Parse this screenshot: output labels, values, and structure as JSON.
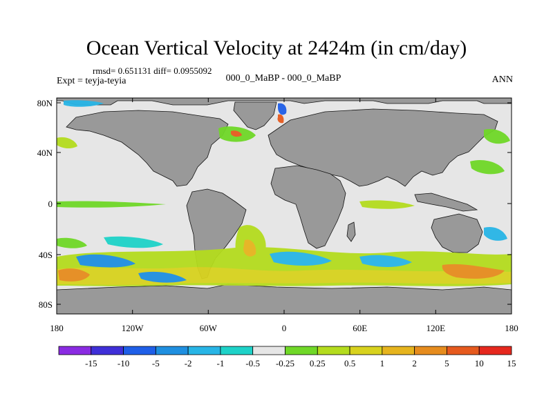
{
  "title": "Ocean Vertical Velocity at 2424m (in cm/day)",
  "stats": "rmsd= 0.651131 diff= 0.0955092",
  "experiment": "Expt = teyja-teyia",
  "comparison": "000_0_MaBP - 000_0_MaBP",
  "season": "ANN",
  "lat_ticks": [
    "80N",
    "40N",
    "0",
    "40S",
    "80S"
  ],
  "lon_ticks": [
    "180",
    "120W",
    "60W",
    "0",
    "60E",
    "120E",
    "180"
  ],
  "colorbar": {
    "labels": [
      "-15",
      "-10",
      "-5",
      "-2",
      "-1",
      "-0.5",
      "-0.25",
      "0.25",
      "0.5",
      "1",
      "2",
      "5",
      "10",
      "15"
    ],
    "colors": [
      "#8a2be2",
      "#3f2fd8",
      "#1f5fe8",
      "#1f8fe0",
      "#28b5e6",
      "#1ed2c8",
      "#e6e6e6",
      "#70d828",
      "#b4dc1e",
      "#d8d21e",
      "#e6b41e",
      "#e68c1e",
      "#e65a1e",
      "#e6281e"
    ]
  },
  "colors": {
    "land": "#999999",
    "ocean_neutral": "#e6e6e6"
  }
}
